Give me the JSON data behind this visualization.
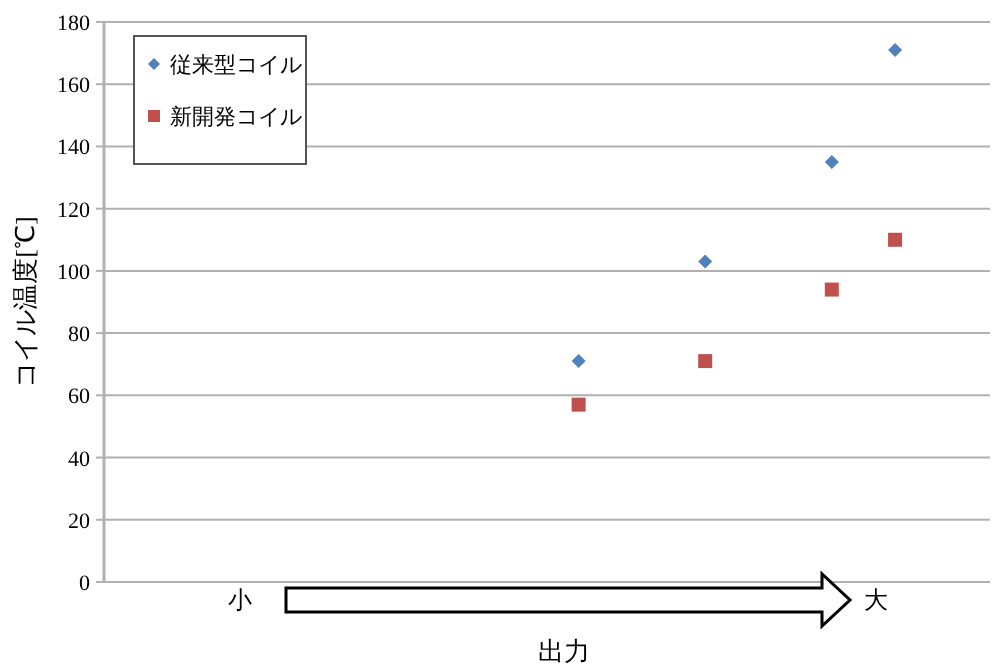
{
  "chart_data": {
    "type": "scatter",
    "ylabel": "コイル温度[℃]",
    "xlabel": "出力",
    "categories": [
      null,
      null,
      null,
      null,
      null,
      null,
      null,
      null,
      null,
      null,
      null,
      null,
      null,
      null
    ],
    "series": [
      {
        "name": "従来型コイル",
        "color": "#4f81bd",
        "marker": "diamond",
        "values": [
          null,
          null,
          null,
          null,
          null,
          null,
          null,
          71,
          null,
          103,
          null,
          135,
          171,
          null
        ]
      },
      {
        "name": "新開発コイル",
        "color": "#c0504d",
        "marker": "square",
        "values": [
          null,
          null,
          null,
          null,
          null,
          null,
          null,
          57,
          null,
          71,
          null,
          94,
          110,
          null
        ]
      }
    ],
    "ylim": [
      0,
      180
    ],
    "yticks": [
      0,
      20,
      40,
      60,
      80,
      100,
      120,
      140,
      160,
      180
    ],
    "grid": "y",
    "legend": "top left",
    "tick_labels": "y",
    "annotations": [
      "小",
      "大"
    ]
  }
}
